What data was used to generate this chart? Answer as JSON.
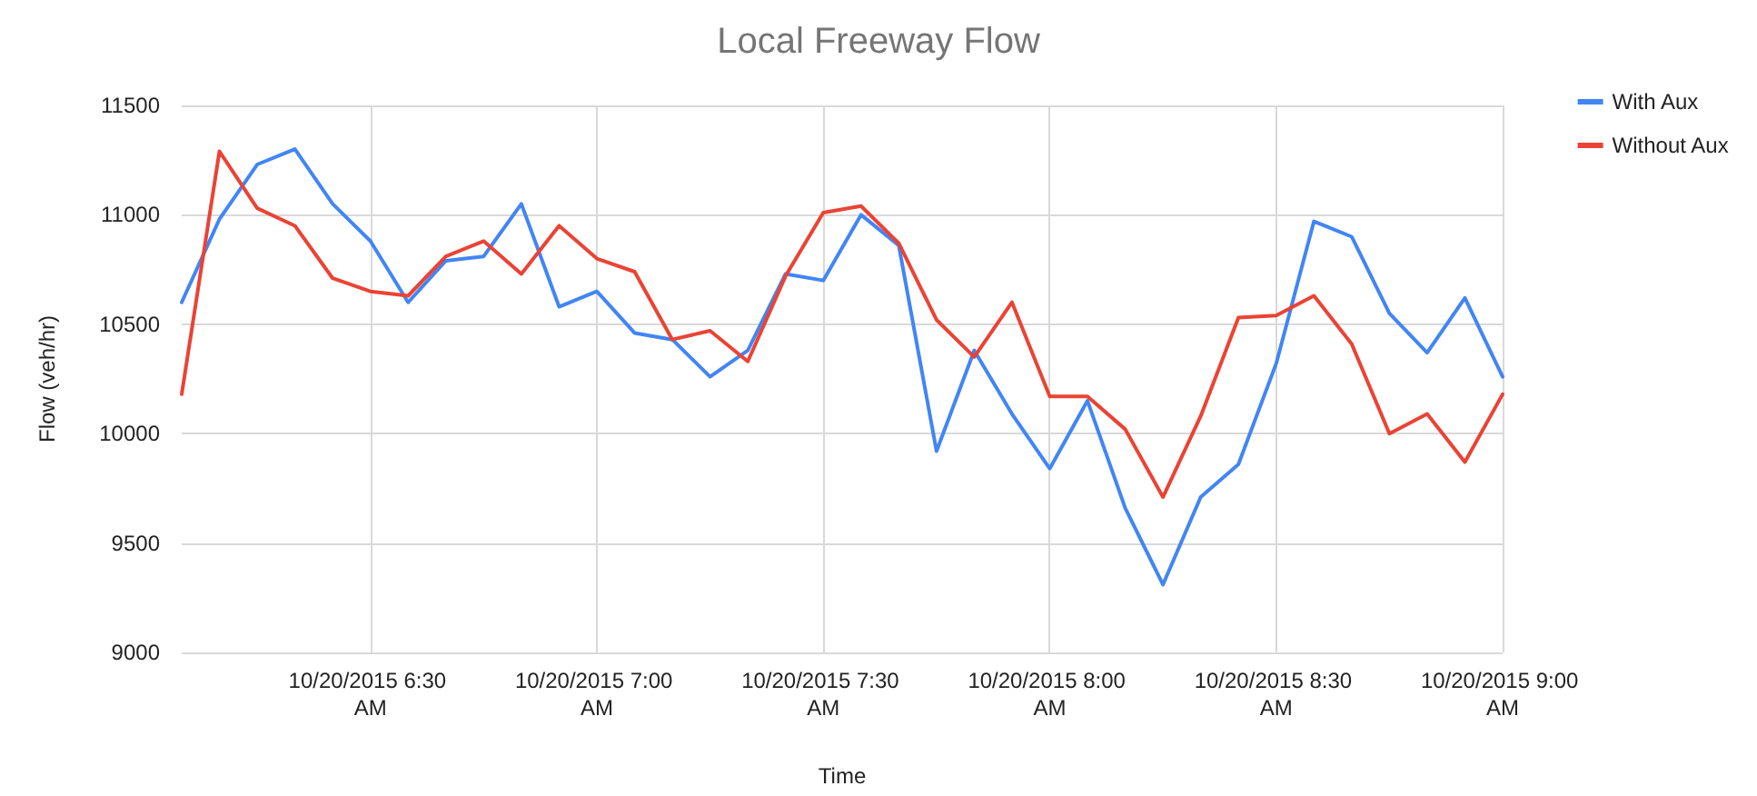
{
  "chart_data": {
    "type": "line",
    "title": "Local Freeway Flow",
    "xlabel": "Time",
    "ylabel": "Flow (veh/hr)",
    "x": [
      "2015-10-20T06:05",
      "2015-10-20T06:10",
      "2015-10-20T06:15",
      "2015-10-20T06:20",
      "2015-10-20T06:25",
      "2015-10-20T06:30",
      "2015-10-20T06:35",
      "2015-10-20T06:40",
      "2015-10-20T06:45",
      "2015-10-20T06:50",
      "2015-10-20T06:55",
      "2015-10-20T07:00",
      "2015-10-20T07:05",
      "2015-10-20T07:10",
      "2015-10-20T07:15",
      "2015-10-20T07:20",
      "2015-10-20T07:25",
      "2015-10-20T07:30",
      "2015-10-20T07:35",
      "2015-10-20T07:40",
      "2015-10-20T07:45",
      "2015-10-20T07:50",
      "2015-10-20T07:55",
      "2015-10-20T08:00",
      "2015-10-20T08:05",
      "2015-10-20T08:10",
      "2015-10-20T08:15",
      "2015-10-20T08:20",
      "2015-10-20T08:25",
      "2015-10-20T08:30",
      "2015-10-20T08:35",
      "2015-10-20T08:40",
      "2015-10-20T08:45",
      "2015-10-20T08:50",
      "2015-10-20T08:55",
      "2015-10-20T09:00"
    ],
    "series": [
      {
        "name": "With Aux",
        "color": "#4285f4",
        "values": [
          10600,
          10980,
          11230,
          11300,
          11050,
          10880,
          10600,
          10790,
          10810,
          11050,
          10580,
          10650,
          10460,
          10430,
          10260,
          10380,
          10730,
          10700,
          11000,
          10860,
          9920,
          10380,
          10090,
          9840,
          10150,
          9660,
          9310,
          9710,
          9860,
          10320,
          10970,
          10900,
          10550,
          10370,
          10620,
          10260
        ]
      },
      {
        "name": "Without Aux",
        "color": "#ea4335",
        "values": [
          10180,
          11290,
          11030,
          10950,
          10710,
          10650,
          10630,
          10810,
          10880,
          10730,
          10950,
          10800,
          10740,
          10430,
          10470,
          10330,
          10720,
          11010,
          11040,
          10870,
          10520,
          10350,
          10600,
          10170,
          10170,
          10020,
          9710,
          10080,
          10530,
          10540,
          10630,
          10410,
          10000,
          10090,
          9870,
          10180
        ]
      }
    ],
    "xlim": [
      "2015-10-20T06:05",
      "2015-10-20T09:00"
    ],
    "xticks": [
      {
        "value": "2015-10-20T06:30",
        "label": "10/20/2015 6:30 AM"
      },
      {
        "value": "2015-10-20T07:00",
        "label": "10/20/2015 7:00 AM"
      },
      {
        "value": "2015-10-20T07:30",
        "label": "10/20/2015 7:30 AM"
      },
      {
        "value": "2015-10-20T08:00",
        "label": "10/20/2015 8:00 AM"
      },
      {
        "value": "2015-10-20T08:30",
        "label": "10/20/2015 8:30 AM"
      },
      {
        "value": "2015-10-20T09:00",
        "label": "10/20/2015 9:00 AM"
      }
    ],
    "ylim": [
      9000,
      11500
    ],
    "yticks": [
      9000,
      9500,
      10000,
      10500,
      11000,
      11500
    ],
    "grid": true,
    "legend": "right",
    "marker": "none",
    "line_style": "solid"
  }
}
